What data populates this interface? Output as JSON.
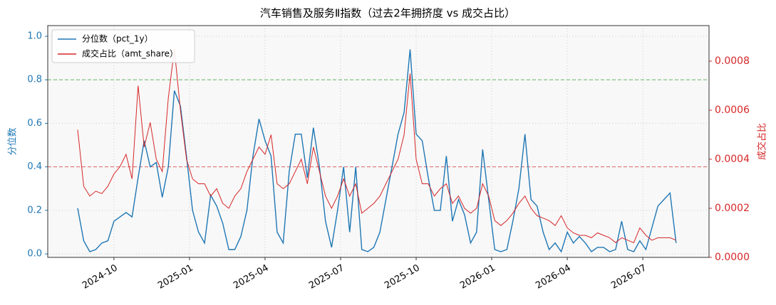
{
  "chart_data": {
    "type": "line",
    "title": "汽车销售及服务Ⅱ指数（过去2年拥挤度 vs 成交占比）",
    "ylabel": "分位数",
    "y2label": "成交占比",
    "x": [
      2024.63,
      2024.65,
      2024.67,
      2024.69,
      2024.71,
      2024.73,
      2024.75,
      2024.77,
      2024.79,
      2024.81,
      2024.83,
      2024.85,
      2024.87,
      2024.89,
      2024.91,
      2024.93,
      2024.95,
      2024.97,
      2024.99,
      2025.01,
      2025.03,
      2025.05,
      2025.07,
      2025.09,
      2025.11,
      2025.13,
      2025.15,
      2025.17,
      2025.19,
      2025.21,
      2025.23,
      2025.25,
      2025.27,
      2025.29,
      2025.31,
      2025.33,
      2025.35,
      2025.37,
      2025.39,
      2025.41,
      2025.43,
      2025.45,
      2025.47,
      2025.49,
      2025.51,
      2025.53,
      2025.55,
      2025.57,
      2025.59,
      2025.61,
      2025.63,
      2025.65,
      2025.67,
      2025.69,
      2025.71,
      2025.73,
      2025.75,
      2025.77,
      2025.79,
      2025.81,
      2025.83,
      2025.85,
      2025.87,
      2025.89,
      2025.91,
      2025.93,
      2025.95,
      2025.97,
      2025.99,
      2026.01,
      2026.03,
      2026.05,
      2026.07,
      2026.09,
      2026.11,
      2026.13,
      2026.15,
      2026.17,
      2026.19,
      2026.21,
      2026.23,
      2026.25,
      2026.27,
      2026.29,
      2026.31,
      2026.33,
      2026.35,
      2026.37,
      2026.39,
      2026.41,
      2026.43,
      2026.45,
      2026.47,
      2026.49,
      2026.51,
      2026.53,
      2026.55,
      2026.57,
      2026.59,
      2026.61
    ],
    "series": [
      {
        "name": "分位数（pct_1y）",
        "color": "#1f77b4",
        "axis": "y",
        "values": [
          0.21,
          0.06,
          0.01,
          0.02,
          0.05,
          0.06,
          0.15,
          0.17,
          0.19,
          0.17,
          0.35,
          0.52,
          0.4,
          0.42,
          0.26,
          0.4,
          0.75,
          0.68,
          0.45,
          0.2,
          0.1,
          0.05,
          0.27,
          0.22,
          0.14,
          0.02,
          0.02,
          0.08,
          0.2,
          0.45,
          0.62,
          0.52,
          0.45,
          0.1,
          0.05,
          0.38,
          0.55,
          0.55,
          0.35,
          0.58,
          0.4,
          0.15,
          0.03,
          0.2,
          0.4,
          0.1,
          0.4,
          0.02,
          0.01,
          0.03,
          0.1,
          0.25,
          0.4,
          0.55,
          0.65,
          0.94,
          0.55,
          0.52,
          0.35,
          0.2,
          0.2,
          0.45,
          0.15,
          0.25,
          0.18,
          0.05,
          0.1,
          0.48,
          0.25,
          0.02,
          0.01,
          0.02,
          0.15,
          0.3,
          0.55,
          0.25,
          0.22,
          0.1,
          0.02,
          0.05,
          0.01,
          0.1,
          0.05,
          0.08,
          0.05,
          0.01,
          0.03,
          0.03,
          0.01,
          0.02,
          0.15,
          0.02,
          0.01,
          0.06,
          0.02,
          0.12,
          0.22,
          0.25,
          0.28,
          0.05
        ]
      },
      {
        "name": "成交占比（amt_share）",
        "color": "#d62728",
        "axis": "y2",
        "values": [
          0.00052,
          0.00029,
          0.00025,
          0.00027,
          0.00026,
          0.00029,
          0.00034,
          0.00037,
          0.00042,
          0.00032,
          0.0007,
          0.00045,
          0.00055,
          0.0004,
          0.00035,
          0.00065,
          0.00085,
          0.0006,
          0.0004,
          0.00032,
          0.0003,
          0.0003,
          0.00025,
          0.00028,
          0.00022,
          0.0002,
          0.00025,
          0.00028,
          0.00035,
          0.0004,
          0.00045,
          0.00042,
          0.0005,
          0.0003,
          0.00028,
          0.0003,
          0.00035,
          0.0004,
          0.0003,
          0.00045,
          0.00035,
          0.00025,
          0.0002,
          0.00025,
          0.00032,
          0.00025,
          0.0003,
          0.00018,
          0.0002,
          0.00022,
          0.00025,
          0.0003,
          0.00035,
          0.0004,
          0.0005,
          0.00075,
          0.0004,
          0.0003,
          0.0003,
          0.00025,
          0.00028,
          0.0003,
          0.00022,
          0.00025,
          0.0002,
          0.00018,
          0.0002,
          0.0003,
          0.00025,
          0.00015,
          0.00013,
          0.00015,
          0.00018,
          0.00022,
          0.00025,
          0.0002,
          0.00017,
          0.00016,
          0.00015,
          0.00013,
          0.00017,
          0.00012,
          0.0001,
          9e-05,
          9e-05,
          8e-05,
          0.0001,
          9e-05,
          8e-05,
          6e-05,
          8e-05,
          7e-05,
          6e-05,
          0.00012,
          9e-05,
          7e-05,
          8e-05,
          8e-05,
          8e-05,
          7e-05
        ]
      }
    ],
    "xlim": [
      2024.531,
      2026.719
    ],
    "xticks": [
      {
        "value": 2024.75,
        "label": "2024-10"
      },
      {
        "value": 2025.0,
        "label": "2025-01"
      },
      {
        "value": 2025.25,
        "label": "2025-04"
      },
      {
        "value": 2025.5,
        "label": "2025-07"
      },
      {
        "value": 2025.75,
        "label": "2025-10"
      },
      {
        "value": 2026.0,
        "label": "2026-01"
      },
      {
        "value": 2026.25,
        "label": "2026-04"
      },
      {
        "value": 2026.5,
        "label": "2026-07"
      }
    ],
    "ylim": [
      -0.016,
      1.049
    ],
    "yticks": [
      {
        "value": 0,
        "label": "0.0"
      },
      0.2,
      0.4,
      0.6,
      0.8,
      {
        "value": 1,
        "label": "1.0"
      }
    ],
    "y2lim": [
      0,
      0.000945
    ],
    "y2ticks": [
      {
        "value": 0,
        "label": "0.0000"
      },
      {
        "value": 0.0002,
        "label": "0.0002"
      },
      {
        "value": 0.0004,
        "label": "0.0004"
      },
      {
        "value": 0.0006,
        "label": "0.0006"
      },
      {
        "value": 0.0008,
        "label": "0.0008"
      }
    ],
    "hlines": [
      {
        "value": 0.8,
        "color": "#2ca02c"
      },
      {
        "value": 0.4,
        "color": "#d62728"
      }
    ],
    "grid": true,
    "legend": "upper left"
  }
}
